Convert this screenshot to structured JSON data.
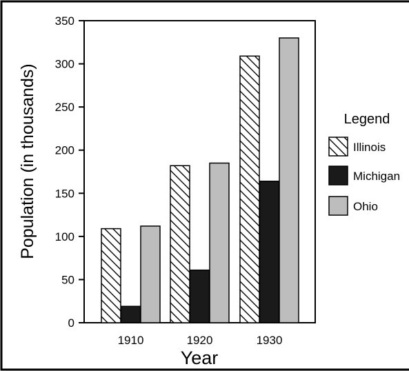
{
  "chart_data": {
    "type": "bar",
    "categories": [
      "1910",
      "1920",
      "1930"
    ],
    "series": [
      {
        "name": "Illinois",
        "values": [
          109,
          182,
          309
        ],
        "pattern": "diagonal-hatch",
        "color": "#ffffff"
      },
      {
        "name": "Michigan",
        "values": [
          19,
          61,
          164
        ],
        "pattern": "solid",
        "color": "#1a1a1a"
      },
      {
        "name": "Ohio",
        "values": [
          112,
          185,
          330
        ],
        "pattern": "solid",
        "color": "#bdbdbd"
      }
    ],
    "title": "",
    "xlabel": "Year",
    "ylabel": "Population  (in thousands)",
    "ylim": [
      0,
      350
    ],
    "yticks": [
      "0",
      "50",
      "100",
      "150",
      "200",
      "250",
      "300",
      "350"
    ],
    "grid": false,
    "legend": {
      "title": "Legend",
      "placement": "right"
    }
  }
}
